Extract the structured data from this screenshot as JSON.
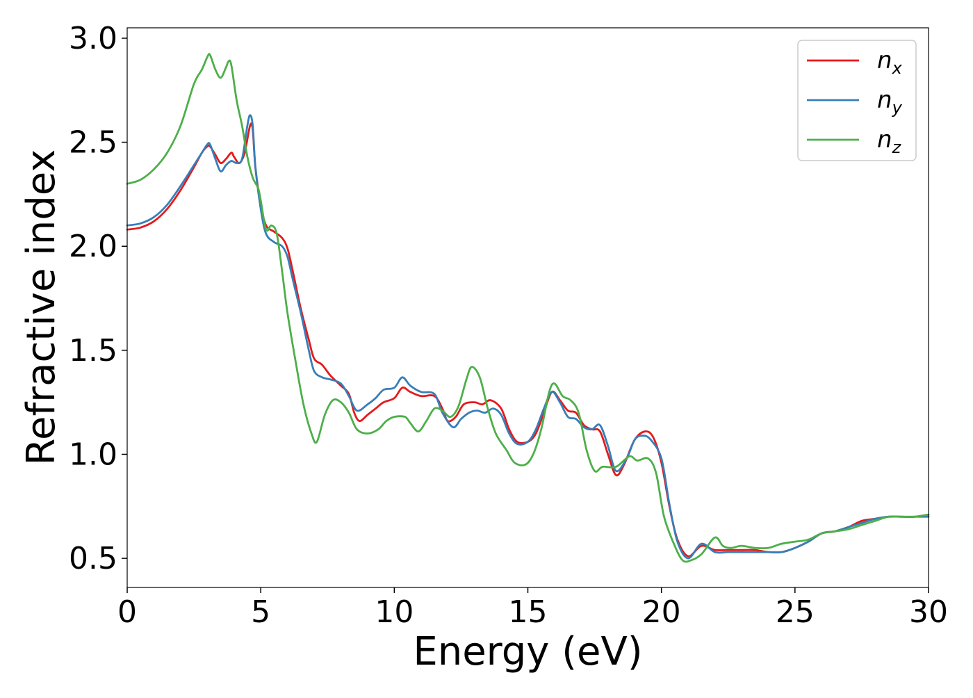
{
  "chart_data": {
    "type": "line",
    "title": "",
    "xlabel": "Energy (eV)",
    "ylabel": "Refractive index",
    "xlim": [
      0,
      30
    ],
    "ylim": [
      0.36,
      3.05
    ],
    "xticks": [
      0,
      5,
      10,
      15,
      20,
      25,
      30
    ],
    "yticks": [
      0.5,
      1.0,
      1.5,
      2.0,
      2.5,
      3.0
    ],
    "xtick_labels": [
      "0",
      "5",
      "10",
      "15",
      "20",
      "25",
      "30"
    ],
    "ytick_labels": [
      "0.5",
      "1.0",
      "1.5",
      "2.0",
      "2.5",
      "3.0"
    ],
    "grid": false,
    "legend_position": "top-right",
    "series": [
      {
        "name": "n_x",
        "label_base": "n",
        "label_sub": "x",
        "color": "#e41a1c",
        "points": [
          [
            0,
            2.08
          ],
          [
            0.5,
            2.09
          ],
          [
            1.0,
            2.12
          ],
          [
            1.5,
            2.18
          ],
          [
            2.0,
            2.27
          ],
          [
            2.5,
            2.38
          ],
          [
            2.8,
            2.45
          ],
          [
            3.0,
            2.48
          ],
          [
            3.1,
            2.48
          ],
          [
            3.3,
            2.44
          ],
          [
            3.5,
            2.4
          ],
          [
            3.7,
            2.42
          ],
          [
            3.9,
            2.45
          ],
          [
            4.0,
            2.43
          ],
          [
            4.2,
            2.4
          ],
          [
            4.4,
            2.45
          ],
          [
            4.6,
            2.58
          ],
          [
            4.7,
            2.56
          ],
          [
            4.8,
            2.38
          ],
          [
            5.0,
            2.2
          ],
          [
            5.2,
            2.1
          ],
          [
            5.5,
            2.07
          ],
          [
            5.8,
            2.04
          ],
          [
            6.0,
            1.99
          ],
          [
            6.2,
            1.88
          ],
          [
            6.5,
            1.7
          ],
          [
            6.8,
            1.55
          ],
          [
            7.0,
            1.46
          ],
          [
            7.3,
            1.43
          ],
          [
            7.6,
            1.38
          ],
          [
            8.0,
            1.33
          ],
          [
            8.3,
            1.29
          ],
          [
            8.5,
            1.2
          ],
          [
            8.7,
            1.16
          ],
          [
            9.0,
            1.19
          ],
          [
            9.3,
            1.22
          ],
          [
            9.6,
            1.25
          ],
          [
            10.0,
            1.27
          ],
          [
            10.3,
            1.32
          ],
          [
            10.6,
            1.3
          ],
          [
            11.0,
            1.28
          ],
          [
            11.5,
            1.28
          ],
          [
            11.8,
            1.22
          ],
          [
            12.0,
            1.16
          ],
          [
            12.3,
            1.18
          ],
          [
            12.6,
            1.24
          ],
          [
            13.0,
            1.25
          ],
          [
            13.3,
            1.24
          ],
          [
            13.6,
            1.26
          ],
          [
            14.0,
            1.22
          ],
          [
            14.3,
            1.12
          ],
          [
            14.6,
            1.06
          ],
          [
            15.0,
            1.06
          ],
          [
            15.3,
            1.1
          ],
          [
            15.6,
            1.2
          ],
          [
            15.9,
            1.3
          ],
          [
            16.2,
            1.26
          ],
          [
            16.5,
            1.21
          ],
          [
            16.8,
            1.2
          ],
          [
            17.1,
            1.14
          ],
          [
            17.4,
            1.12
          ],
          [
            17.7,
            1.11
          ],
          [
            18.0,
            1.0
          ],
          [
            18.3,
            0.9
          ],
          [
            18.6,
            0.95
          ],
          [
            19.0,
            1.07
          ],
          [
            19.4,
            1.11
          ],
          [
            19.7,
            1.08
          ],
          [
            20.0,
            0.96
          ],
          [
            20.3,
            0.75
          ],
          [
            20.6,
            0.59
          ],
          [
            21.0,
            0.51
          ],
          [
            21.5,
            0.56
          ],
          [
            22.0,
            0.54
          ],
          [
            22.5,
            0.54
          ],
          [
            23.0,
            0.54
          ],
          [
            23.5,
            0.54
          ],
          [
            24.0,
            0.53
          ],
          [
            24.5,
            0.53
          ],
          [
            25.0,
            0.55
          ],
          [
            25.5,
            0.58
          ],
          [
            26.0,
            0.62
          ],
          [
            26.5,
            0.63
          ],
          [
            27.0,
            0.65
          ],
          [
            27.5,
            0.68
          ],
          [
            28.0,
            0.69
          ],
          [
            28.5,
            0.7
          ],
          [
            29.0,
            0.7
          ],
          [
            29.5,
            0.7
          ],
          [
            30.0,
            0.71
          ]
        ]
      },
      {
        "name": "n_y",
        "label_base": "n",
        "label_sub": "y",
        "color": "#377eb8",
        "points": [
          [
            0,
            2.1
          ],
          [
            0.5,
            2.11
          ],
          [
            1.0,
            2.14
          ],
          [
            1.5,
            2.2
          ],
          [
            2.0,
            2.29
          ],
          [
            2.5,
            2.39
          ],
          [
            2.8,
            2.45
          ],
          [
            3.0,
            2.49
          ],
          [
            3.1,
            2.49
          ],
          [
            3.3,
            2.42
          ],
          [
            3.5,
            2.36
          ],
          [
            3.7,
            2.39
          ],
          [
            3.9,
            2.41
          ],
          [
            4.1,
            2.4
          ],
          [
            4.3,
            2.42
          ],
          [
            4.5,
            2.58
          ],
          [
            4.6,
            2.63
          ],
          [
            4.7,
            2.58
          ],
          [
            4.8,
            2.38
          ],
          [
            5.0,
            2.18
          ],
          [
            5.2,
            2.06
          ],
          [
            5.5,
            2.02
          ],
          [
            5.8,
            2.0
          ],
          [
            6.0,
            1.95
          ],
          [
            6.2,
            1.84
          ],
          [
            6.5,
            1.68
          ],
          [
            6.8,
            1.5
          ],
          [
            7.0,
            1.4
          ],
          [
            7.3,
            1.37
          ],
          [
            7.6,
            1.36
          ],
          [
            8.0,
            1.34
          ],
          [
            8.3,
            1.28
          ],
          [
            8.6,
            1.21
          ],
          [
            9.0,
            1.24
          ],
          [
            9.3,
            1.27
          ],
          [
            9.6,
            1.31
          ],
          [
            10.0,
            1.32
          ],
          [
            10.3,
            1.37
          ],
          [
            10.6,
            1.33
          ],
          [
            11.0,
            1.3
          ],
          [
            11.5,
            1.29
          ],
          [
            11.8,
            1.2
          ],
          [
            12.2,
            1.13
          ],
          [
            12.5,
            1.17
          ],
          [
            12.8,
            1.2
          ],
          [
            13.1,
            1.21
          ],
          [
            13.4,
            1.2
          ],
          [
            13.7,
            1.22
          ],
          [
            14.0,
            1.19
          ],
          [
            14.3,
            1.1
          ],
          [
            14.6,
            1.05
          ],
          [
            15.0,
            1.06
          ],
          [
            15.3,
            1.12
          ],
          [
            15.6,
            1.22
          ],
          [
            15.9,
            1.3
          ],
          [
            16.2,
            1.25
          ],
          [
            16.5,
            1.18
          ],
          [
            16.8,
            1.17
          ],
          [
            17.1,
            1.13
          ],
          [
            17.4,
            1.12
          ],
          [
            17.7,
            1.14
          ],
          [
            18.0,
            1.04
          ],
          [
            18.3,
            0.92
          ],
          [
            18.7,
            0.98
          ],
          [
            19.0,
            1.07
          ],
          [
            19.3,
            1.09
          ],
          [
            19.6,
            1.07
          ],
          [
            20.0,
            0.98
          ],
          [
            20.3,
            0.76
          ],
          [
            20.6,
            0.58
          ],
          [
            21.0,
            0.5
          ],
          [
            21.5,
            0.57
          ],
          [
            22.0,
            0.53
          ],
          [
            22.5,
            0.53
          ],
          [
            23.0,
            0.53
          ],
          [
            23.5,
            0.53
          ],
          [
            24.0,
            0.53
          ],
          [
            24.5,
            0.53
          ],
          [
            25.0,
            0.55
          ],
          [
            25.5,
            0.58
          ],
          [
            26.0,
            0.62
          ],
          [
            26.5,
            0.63
          ],
          [
            27.0,
            0.65
          ],
          [
            27.5,
            0.67
          ],
          [
            28.0,
            0.69
          ],
          [
            28.5,
            0.7
          ],
          [
            29.0,
            0.7
          ],
          [
            29.5,
            0.7
          ],
          [
            30.0,
            0.7
          ]
        ]
      },
      {
        "name": "n_z",
        "label_base": "n",
        "label_sub": "z",
        "color": "#4daf4a",
        "points": [
          [
            0,
            2.3
          ],
          [
            0.5,
            2.32
          ],
          [
            1.0,
            2.37
          ],
          [
            1.5,
            2.45
          ],
          [
            2.0,
            2.58
          ],
          [
            2.5,
            2.78
          ],
          [
            2.8,
            2.85
          ],
          [
            3.0,
            2.91
          ],
          [
            3.1,
            2.92
          ],
          [
            3.3,
            2.85
          ],
          [
            3.5,
            2.81
          ],
          [
            3.7,
            2.86
          ],
          [
            3.8,
            2.89
          ],
          [
            3.9,
            2.87
          ],
          [
            4.1,
            2.7
          ],
          [
            4.3,
            2.58
          ],
          [
            4.5,
            2.43
          ],
          [
            4.7,
            2.33
          ],
          [
            4.9,
            2.28
          ],
          [
            5.0,
            2.22
          ],
          [
            5.2,
            2.08
          ],
          [
            5.4,
            2.1
          ],
          [
            5.6,
            2.06
          ],
          [
            5.8,
            1.88
          ],
          [
            6.0,
            1.68
          ],
          [
            6.3,
            1.45
          ],
          [
            6.6,
            1.24
          ],
          [
            6.9,
            1.1
          ],
          [
            7.1,
            1.06
          ],
          [
            7.4,
            1.19
          ],
          [
            7.7,
            1.26
          ],
          [
            8.0,
            1.25
          ],
          [
            8.3,
            1.2
          ],
          [
            8.6,
            1.12
          ],
          [
            9.0,
            1.1
          ],
          [
            9.4,
            1.12
          ],
          [
            9.7,
            1.16
          ],
          [
            10.0,
            1.18
          ],
          [
            10.4,
            1.18
          ],
          [
            10.6,
            1.15
          ],
          [
            10.9,
            1.11
          ],
          [
            11.2,
            1.16
          ],
          [
            11.5,
            1.22
          ],
          [
            11.8,
            1.21
          ],
          [
            12.1,
            1.18
          ],
          [
            12.4,
            1.23
          ],
          [
            12.7,
            1.36
          ],
          [
            12.9,
            1.42
          ],
          [
            13.2,
            1.37
          ],
          [
            13.5,
            1.22
          ],
          [
            13.8,
            1.1
          ],
          [
            14.2,
            1.02
          ],
          [
            14.5,
            0.96
          ],
          [
            14.9,
            0.95
          ],
          [
            15.2,
            1.0
          ],
          [
            15.5,
            1.12
          ],
          [
            15.8,
            1.3
          ],
          [
            16.0,
            1.34
          ],
          [
            16.3,
            1.28
          ],
          [
            16.6,
            1.26
          ],
          [
            16.9,
            1.2
          ],
          [
            17.2,
            1.02
          ],
          [
            17.5,
            0.92
          ],
          [
            17.8,
            0.94
          ],
          [
            18.3,
            0.94
          ],
          [
            18.8,
            0.99
          ],
          [
            19.1,
            0.97
          ],
          [
            19.5,
            0.98
          ],
          [
            19.8,
            0.91
          ],
          [
            20.1,
            0.7
          ],
          [
            20.5,
            0.56
          ],
          [
            20.8,
            0.49
          ],
          [
            21.1,
            0.49
          ],
          [
            21.5,
            0.52
          ],
          [
            22.0,
            0.6
          ],
          [
            22.3,
            0.56
          ],
          [
            22.6,
            0.55
          ],
          [
            23.0,
            0.56
          ],
          [
            23.5,
            0.55
          ],
          [
            24.0,
            0.55
          ],
          [
            24.5,
            0.57
          ],
          [
            25.0,
            0.58
          ],
          [
            25.5,
            0.59
          ],
          [
            26.0,
            0.62
          ],
          [
            26.5,
            0.63
          ],
          [
            27.0,
            0.64
          ],
          [
            27.5,
            0.66
          ],
          [
            28.0,
            0.68
          ],
          [
            28.5,
            0.7
          ],
          [
            29.0,
            0.7
          ],
          [
            29.5,
            0.7
          ],
          [
            30.0,
            0.71
          ]
        ]
      }
    ]
  }
}
